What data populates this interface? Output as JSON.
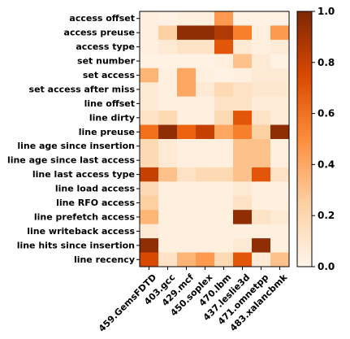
{
  "chart_data": {
    "type": "heatmap",
    "colormap": "Oranges",
    "columns": [
      "459.GemsFDTD",
      "403.gcc",
      "429.mcf",
      "450.soplex",
      "470.lbm",
      "437.leslie3d",
      "471.omnetpp",
      "483.xalancbmk"
    ],
    "rows": [
      "access offset",
      "access preuse",
      "access type",
      "set number",
      "set access",
      "set access after miss",
      "line offset",
      "line dirty",
      "line preuse",
      "line age since insertion",
      "line age since last access",
      "line last access type",
      "line load access",
      "line RFO access",
      "line prefetch access",
      "line writeback access",
      "line hits since insertion",
      "line recency"
    ],
    "values": [
      [
        0.05,
        0.03,
        0.05,
        0.05,
        0.45,
        0.03,
        0.03,
        0.03
      ],
      [
        0.05,
        0.25,
        0.95,
        0.95,
        0.85,
        0.55,
        0.05,
        0.45
      ],
      [
        0.05,
        0.1,
        0.15,
        0.15,
        0.7,
        0.1,
        0.05,
        0.08
      ],
      [
        0.03,
        0.03,
        0.03,
        0.03,
        0.05,
        0.3,
        0.1,
        0.03
      ],
      [
        0.35,
        0.05,
        0.4,
        0.05,
        0.03,
        0.05,
        0.1,
        0.1
      ],
      [
        0.1,
        0.05,
        0.4,
        0.1,
        0.2,
        0.15,
        0.12,
        0.12
      ],
      [
        0.1,
        0.05,
        0.05,
        0.05,
        0.15,
        0.15,
        0.08,
        0.08
      ],
      [
        0.15,
        0.2,
        0.05,
        0.05,
        0.2,
        0.7,
        0.15,
        0.08
      ],
      [
        0.6,
        0.95,
        0.65,
        0.8,
        0.4,
        0.55,
        0.25,
        0.95
      ],
      [
        0.2,
        0.1,
        0.05,
        0.05,
        0.05,
        0.3,
        0.3,
        0.05
      ],
      [
        0.2,
        0.1,
        0.05,
        0.05,
        0.05,
        0.3,
        0.3,
        0.05
      ],
      [
        0.8,
        0.3,
        0.15,
        0.2,
        0.2,
        0.3,
        0.7,
        0.15
      ],
      [
        0.2,
        0.05,
        0.05,
        0.05,
        0.05,
        0.1,
        0.05,
        0.05
      ],
      [
        0.25,
        0.05,
        0.05,
        0.05,
        0.05,
        0.15,
        0.05,
        0.05
      ],
      [
        0.35,
        0.05,
        0.05,
        0.05,
        0.05,
        0.95,
        0.15,
        0.1
      ],
      [
        0.1,
        0.05,
        0.05,
        0.05,
        0.05,
        0.05,
        0.05,
        0.05
      ],
      [
        0.95,
        0.05,
        0.05,
        0.05,
        0.05,
        0.1,
        0.95,
        0.05
      ],
      [
        0.75,
        0.15,
        0.35,
        0.45,
        0.2,
        0.7,
        0.1,
        0.3
      ]
    ],
    "colorbar": {
      "min": 0.0,
      "max": 1.0,
      "ticks": [
        "0.0",
        "0.2",
        "0.4",
        "0.6",
        "0.8",
        "1.0"
      ]
    },
    "title": "",
    "xlabel": "",
    "ylabel": ""
  }
}
